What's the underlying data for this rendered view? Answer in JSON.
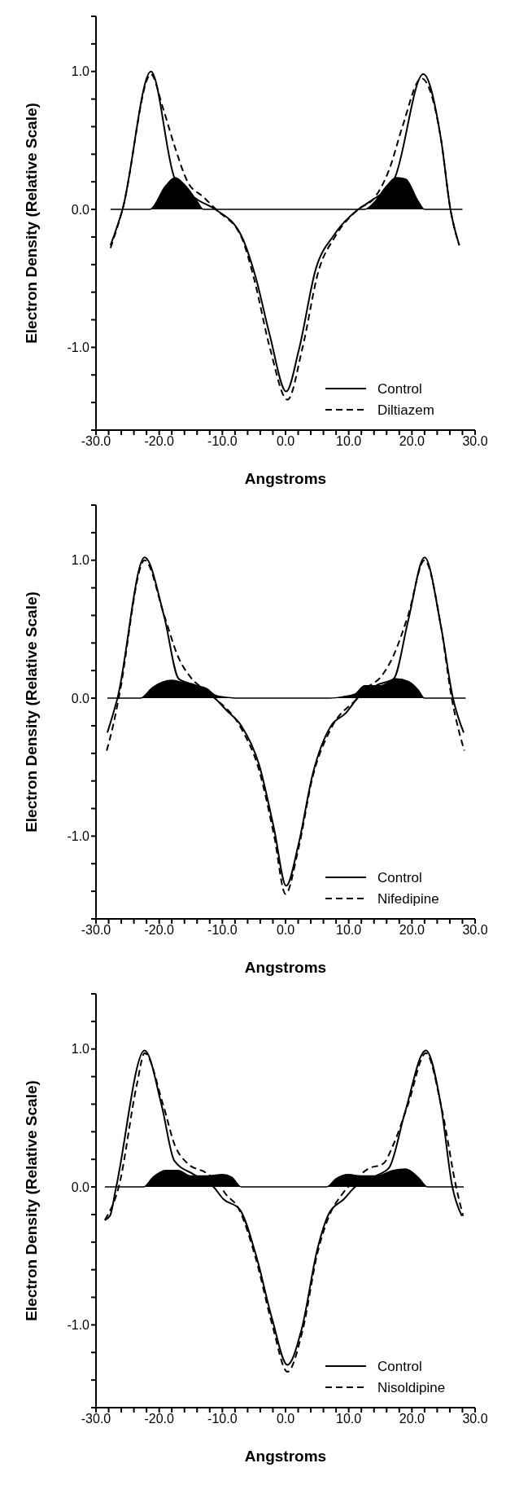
{
  "chart_data": [
    {
      "type": "line",
      "xlabel": "Angstroms",
      "ylabel": "Electron Density (Relative Scale)",
      "xlim": [
        -30,
        30
      ],
      "ylim": [
        -1.6,
        1.4
      ],
      "xticks": [
        {
          "value": -30,
          "label": "-30.0"
        },
        {
          "value": -28,
          "label": null
        },
        {
          "value": -26,
          "label": null
        },
        {
          "value": -24,
          "label": null
        },
        {
          "value": -22,
          "label": null
        },
        {
          "value": -20,
          "label": "-20.0"
        },
        {
          "value": -18,
          "label": null
        },
        {
          "value": -16,
          "label": null
        },
        {
          "value": -14,
          "label": null
        },
        {
          "value": -12,
          "label": null
        },
        {
          "value": -10,
          "label": "-10.0"
        },
        {
          "value": -8,
          "label": null
        },
        {
          "value": -6,
          "label": null
        },
        {
          "value": -4,
          "label": null
        },
        {
          "value": -2,
          "label": null
        },
        {
          "value": 0,
          "label": "0.0"
        },
        {
          "value": 2,
          "label": null
        },
        {
          "value": 4,
          "label": null
        },
        {
          "value": 6,
          "label": null
        },
        {
          "value": 8,
          "label": null
        },
        {
          "value": 10,
          "label": "10.0"
        },
        {
          "value": 12,
          "label": null
        },
        {
          "value": 14,
          "label": null
        },
        {
          "value": 16,
          "label": null
        },
        {
          "value": 18,
          "label": null
        },
        {
          "value": 20,
          "label": "20.0"
        },
        {
          "value": 22,
          "label": null
        },
        {
          "value": 24,
          "label": null
        },
        {
          "value": 26,
          "label": null
        },
        {
          "value": 28,
          "label": null
        },
        {
          "value": 30,
          "label": "30.0"
        }
      ],
      "yticks": [
        {
          "value": -1.6,
          "label": null
        },
        {
          "value": -1.4,
          "label": null
        },
        {
          "value": -1.2,
          "label": null
        },
        {
          "value": -1.0,
          "label": "-1.0"
        },
        {
          "value": -0.8,
          "label": null
        },
        {
          "value": -0.6,
          "label": null
        },
        {
          "value": -0.4,
          "label": null
        },
        {
          "value": -0.2,
          "label": null
        },
        {
          "value": 0,
          "label": "0.0"
        },
        {
          "value": 0.2,
          "label": null
        },
        {
          "value": 0.4,
          "label": null
        },
        {
          "value": 0.6,
          "label": null
        },
        {
          "value": 0.8,
          "label": null
        },
        {
          "value": 1.0,
          "label": "1.0"
        },
        {
          "value": 1.2,
          "label": null
        },
        {
          "value": 1.4,
          "label": null
        }
      ],
      "legend": "bottom right",
      "grid": false,
      "series": [
        {
          "type": "area",
          "color": "#000000",
          "x": [
            -27.7,
            -22,
            -21.5,
            -19,
            -17.5,
            -16,
            -14,
            -13,
            12.5,
            14,
            16,
            17.5,
            19,
            21,
            22,
            28
          ],
          "values": [
            0,
            0,
            0,
            0.17,
            0.23,
            0.18,
            0.06,
            0,
            0,
            0.05,
            0.17,
            0.23,
            0.22,
            0.06,
            0,
            0
          ]
        },
        {
          "name": "Control",
          "color": "#000000",
          "line_style": "solid",
          "x": [
            -27.7,
            -25.8,
            -21.3,
            -17.5,
            -13.9,
            -11.1,
            -7.0,
            -4.8,
            -2.5,
            0.1,
            2.1,
            4.8,
            7.6,
            11.5,
            13.1,
            17.2,
            21.8,
            24.6,
            26.1,
            27.5
          ],
          "values": [
            -0.26,
            0,
            1.0,
            0.22,
            0.07,
            0,
            -0.19,
            -0.48,
            -0.91,
            -1.32,
            -1.02,
            -0.43,
            -0.19,
            0,
            0.05,
            0.22,
            0.98,
            0.51,
            0,
            -0.26
          ]
        },
        {
          "name": "Diltiazem",
          "color": "#000000",
          "line_style": "dashed",
          "x": [
            -27.7,
            -25.8,
            -21.3,
            -19.5,
            -17.5,
            -15.5,
            -13,
            -11,
            -7,
            -5,
            -2.5,
            0.3,
            2.7,
            5.2,
            7.8,
            11.5,
            14,
            16.5,
            18.5,
            21.5,
            24.6,
            26.1,
            27.5
          ],
          "values": [
            -0.28,
            0,
            0.98,
            0.75,
            0.45,
            0.2,
            0.09,
            0,
            -0.2,
            -0.5,
            -1.0,
            -1.38,
            -1.0,
            -0.45,
            -0.2,
            0,
            0.08,
            0.3,
            0.6,
            0.95,
            0.51,
            0,
            -0.26
          ]
        }
      ]
    },
    {
      "type": "line",
      "xlabel": "Angstroms",
      "ylabel": "Electron Density (Relative Scale)",
      "xlim": [
        -30,
        30
      ],
      "ylim": [
        -1.6,
        1.4
      ],
      "xticks": [
        {
          "value": -30,
          "label": "-30.0"
        },
        {
          "value": -28,
          "label": null
        },
        {
          "value": -26,
          "label": null
        },
        {
          "value": -24,
          "label": null
        },
        {
          "value": -22,
          "label": null
        },
        {
          "value": -20,
          "label": "-20.0"
        },
        {
          "value": -18,
          "label": null
        },
        {
          "value": -16,
          "label": null
        },
        {
          "value": -14,
          "label": null
        },
        {
          "value": -12,
          "label": null
        },
        {
          "value": -10,
          "label": "-10.0"
        },
        {
          "value": -8,
          "label": null
        },
        {
          "value": -6,
          "label": null
        },
        {
          "value": -4,
          "label": null
        },
        {
          "value": -2,
          "label": null
        },
        {
          "value": 0,
          "label": "0.0"
        },
        {
          "value": 2,
          "label": null
        },
        {
          "value": 4,
          "label": null
        },
        {
          "value": 6,
          "label": null
        },
        {
          "value": 8,
          "label": null
        },
        {
          "value": 10,
          "label": "10.0"
        },
        {
          "value": 12,
          "label": null
        },
        {
          "value": 14,
          "label": null
        },
        {
          "value": 16,
          "label": null
        },
        {
          "value": 18,
          "label": null
        },
        {
          "value": 20,
          "label": "20.0"
        },
        {
          "value": 22,
          "label": null
        },
        {
          "value": 24,
          "label": null
        },
        {
          "value": 26,
          "label": null
        },
        {
          "value": 28,
          "label": null
        },
        {
          "value": 30,
          "label": "30.0"
        }
      ],
      "yticks": [
        {
          "value": -1.6,
          "label": null
        },
        {
          "value": -1.4,
          "label": null
        },
        {
          "value": -1.2,
          "label": null
        },
        {
          "value": -1.0,
          "label": "-1.0"
        },
        {
          "value": -0.8,
          "label": null
        },
        {
          "value": -0.6,
          "label": null
        },
        {
          "value": -0.4,
          "label": null
        },
        {
          "value": -0.2,
          "label": null
        },
        {
          "value": 0,
          "label": "0.0"
        },
        {
          "value": 0.2,
          "label": null
        },
        {
          "value": 0.4,
          "label": null
        },
        {
          "value": 0.6,
          "label": null
        },
        {
          "value": 0.8,
          "label": null
        },
        {
          "value": 1.0,
          "label": "1.0"
        },
        {
          "value": 1.2,
          "label": null
        },
        {
          "value": 1.4,
          "label": null
        }
      ],
      "legend": "bottom right",
      "grid": false,
      "series": [
        {
          "type": "area",
          "color": "#000000",
          "x": [
            -28.2,
            -23,
            -21,
            -18,
            -16,
            -14,
            -12.5,
            -11,
            -9,
            -7,
            7,
            9,
            11,
            12.5,
            15,
            17.5,
            19.5,
            21,
            22,
            28.5
          ],
          "values": [
            0,
            0,
            0.08,
            0.13,
            0.11,
            0.09,
            0.07,
            0.02,
            0.005,
            0,
            0,
            0.01,
            0.03,
            0.09,
            0.09,
            0.14,
            0.12,
            0.06,
            0,
            0
          ]
        },
        {
          "name": "Control",
          "color": "#000000",
          "line_style": "solid",
          "x": [
            -28.2,
            -26.6,
            -22.3,
            -19.2,
            -16.9,
            -14.1,
            -11.2,
            -9.3,
            -7.0,
            -4.2,
            -1.8,
            0.1,
            2.0,
            4.3,
            7.2,
            9.5,
            11.4,
            14.7,
            17.1,
            19.4,
            22.0,
            24.6,
            26.5,
            28.2
          ],
          "values": [
            -0.25,
            0,
            1.02,
            0.59,
            0.14,
            0.09,
            0,
            -0.09,
            -0.2,
            -0.48,
            -0.95,
            -1.36,
            -1.07,
            -0.55,
            -0.2,
            -0.11,
            0,
            0.1,
            0.14,
            0.56,
            1.02,
            0.52,
            0,
            -0.25
          ]
        },
        {
          "name": "Nifedipine",
          "color": "#000000",
          "line_style": "dashed",
          "x": [
            -28.3,
            -27.2,
            -26.4,
            -22.3,
            -19.2,
            -17,
            -15,
            -12.5,
            -11.2,
            -7,
            -4.2,
            -1.8,
            0,
            2,
            4.3,
            7.2,
            11.4,
            13,
            15,
            17,
            19.4,
            22,
            24.6,
            26.3,
            27.5,
            28.3
          ],
          "values": [
            -0.38,
            -0.18,
            0,
            1.0,
            0.6,
            0.3,
            0.15,
            0.05,
            0,
            -0.22,
            -0.52,
            -1.0,
            -1.42,
            -1.1,
            -0.57,
            -0.22,
            0,
            0.08,
            0.15,
            0.3,
            0.6,
            1.0,
            0.52,
            0,
            -0.25,
            -0.38
          ]
        }
      ]
    },
    {
      "type": "line",
      "xlabel": "Angstroms",
      "ylabel": "Electron Density (Relative Scale)",
      "xlim": [
        -30,
        30
      ],
      "ylim": [
        -1.6,
        1.4
      ],
      "xticks": [
        {
          "value": -30,
          "label": "-30.0"
        },
        {
          "value": -28,
          "label": null
        },
        {
          "value": -26,
          "label": null
        },
        {
          "value": -24,
          "label": null
        },
        {
          "value": -22,
          "label": null
        },
        {
          "value": -20,
          "label": "-20.0"
        },
        {
          "value": -18,
          "label": null
        },
        {
          "value": -16,
          "label": null
        },
        {
          "value": -14,
          "label": null
        },
        {
          "value": -12,
          "label": null
        },
        {
          "value": -10,
          "label": "-10.0"
        },
        {
          "value": -8,
          "label": null
        },
        {
          "value": -6,
          "label": null
        },
        {
          "value": -4,
          "label": null
        },
        {
          "value": -2,
          "label": null
        },
        {
          "value": 0,
          "label": "0.0"
        },
        {
          "value": 2,
          "label": null
        },
        {
          "value": 4,
          "label": null
        },
        {
          "value": 6,
          "label": null
        },
        {
          "value": 8,
          "label": null
        },
        {
          "value": 10,
          "label": "10.0"
        },
        {
          "value": 12,
          "label": null
        },
        {
          "value": 14,
          "label": null
        },
        {
          "value": 16,
          "label": null
        },
        {
          "value": 18,
          "label": null
        },
        {
          "value": 20,
          "label": "20.0"
        },
        {
          "value": 22,
          "label": null
        },
        {
          "value": 24,
          "label": null
        },
        {
          "value": 26,
          "label": null
        },
        {
          "value": 28,
          "label": null
        },
        {
          "value": 30,
          "label": "30.0"
        }
      ],
      "yticks": [
        {
          "value": -1.6,
          "label": null
        },
        {
          "value": -1.4,
          "label": null
        },
        {
          "value": -1.2,
          "label": null
        },
        {
          "value": -1.0,
          "label": "-1.0"
        },
        {
          "value": -0.8,
          "label": null
        },
        {
          "value": -0.6,
          "label": null
        },
        {
          "value": -0.4,
          "label": null
        },
        {
          "value": -0.2,
          "label": null
        },
        {
          "value": 0,
          "label": "0.0"
        },
        {
          "value": 0.2,
          "label": null
        },
        {
          "value": 0.4,
          "label": null
        },
        {
          "value": 0.6,
          "label": null
        },
        {
          "value": 0.8,
          "label": null
        },
        {
          "value": 1.0,
          "label": "1.0"
        },
        {
          "value": 1.2,
          "label": null
        },
        {
          "value": 1.4,
          "label": null
        }
      ],
      "legend": "bottom right",
      "grid": false,
      "series": [
        {
          "type": "area",
          "color": "#000000",
          "x": [
            -28.6,
            -22.5,
            -21,
            -19,
            -17,
            -15,
            -12.5,
            -10,
            -8.5,
            -7,
            6.5,
            8,
            10,
            12,
            14.5,
            17,
            19,
            21,
            22.5,
            28.2
          ],
          "values": [
            0,
            0,
            0.07,
            0.12,
            0.12,
            0.08,
            0.08,
            0.09,
            0.07,
            0,
            0,
            0.06,
            0.09,
            0.08,
            0.08,
            0.12,
            0.13,
            0.07,
            0,
            0
          ]
        },
        {
          "name": "Control",
          "color": "#000000",
          "line_style": "solid",
          "x": [
            -28.6,
            -27.8,
            -26.8,
            -22.3,
            -19.6,
            -17.6,
            -14.5,
            -11.4,
            -9.8,
            -7.3,
            -4.7,
            -2.1,
            0.3,
            2.5,
            5.1,
            6.9,
            9.2,
            11.0,
            14.3,
            16.4,
            18.9,
            22.2,
            24.6,
            26.4,
            27.9
          ],
          "values": [
            -0.24,
            -0.21,
            0,
            0.99,
            0.59,
            0.19,
            0.09,
            0,
            -0.09,
            -0.16,
            -0.49,
            -0.96,
            -1.29,
            -1.04,
            -0.44,
            -0.19,
            -0.09,
            0,
            0.08,
            0.14,
            0.54,
            0.99,
            0.59,
            0,
            -0.21
          ]
        },
        {
          "name": "Nisoldipine",
          "color": "#000000",
          "line_style": "dashed",
          "x": [
            -28.6,
            -26.4,
            -23.5,
            -22.3,
            -19.4,
            -17.5,
            -15.5,
            -12.5,
            -10.5,
            -9.5,
            -7.5,
            -4.7,
            -2.1,
            0.3,
            2.7,
            5.1,
            7,
            9,
            11,
            13,
            15.5,
            17,
            19.4,
            22.2,
            24.8,
            27,
            28.1
          ],
          "values": [
            -0.24,
            0,
            0.75,
            0.97,
            0.6,
            0.3,
            0.17,
            0.1,
            0.02,
            -0.05,
            -0.15,
            -0.52,
            -1.0,
            -1.34,
            -1.04,
            -0.47,
            -0.2,
            -0.05,
            0.05,
            0.13,
            0.17,
            0.3,
            0.6,
            0.97,
            0.55,
            0,
            -0.21
          ]
        }
      ]
    }
  ]
}
